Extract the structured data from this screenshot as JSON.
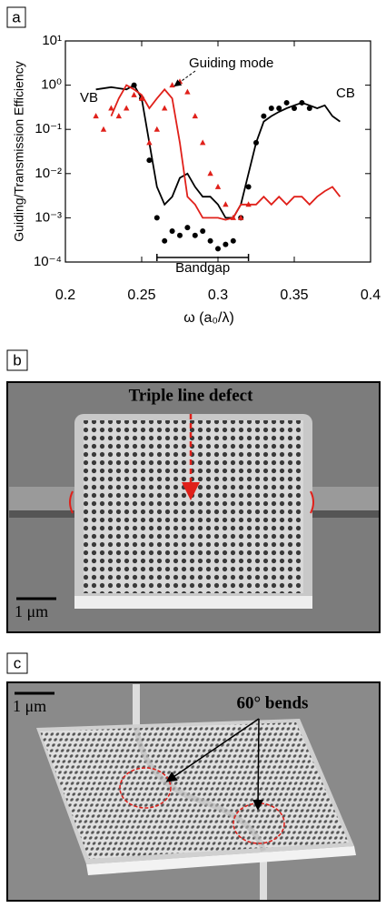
{
  "chart_data": {
    "type": "line",
    "panel_label": "a",
    "ylabel": "Guiding/Transmission Efficiency",
    "xlabel": "ω (a₀/λ)",
    "xlim": [
      0.2,
      0.4
    ],
    "xticks": [
      0.2,
      0.25,
      0.3,
      0.35,
      0.4
    ],
    "ylim": [
      0.0001,
      10
    ],
    "yscale": "log",
    "yticks": [
      {
        "value": 0.0001,
        "label": "10⁻⁴"
      },
      {
        "value": 0.001,
        "label": "10⁻³"
      },
      {
        "value": 0.01,
        "label": "10⁻²"
      },
      {
        "value": 0.1,
        "label": "10⁻¹"
      },
      {
        "value": 1,
        "label": "10⁰"
      },
      {
        "value": 10,
        "label": "10¹"
      }
    ],
    "annotations": {
      "vb": "VB",
      "cb": "CB",
      "guiding": "Guiding mode"
    },
    "bandgap": {
      "label": "Bandgap",
      "range": [
        0.26,
        0.32
      ]
    },
    "series": [
      {
        "color": "#000000",
        "marker": "line",
        "x": [
          0.22,
          0.23,
          0.24,
          0.245,
          0.25,
          0.255,
          0.26,
          0.265,
          0.27,
          0.275,
          0.28,
          0.285,
          0.29,
          0.295,
          0.3,
          0.305,
          0.31,
          0.315,
          0.32,
          0.325,
          0.33,
          0.335,
          0.34,
          0.345,
          0.35,
          0.355,
          0.36,
          0.365,
          0.37,
          0.375,
          0.38
        ],
        "values": [
          0.8,
          0.9,
          0.8,
          1.0,
          0.5,
          0.05,
          0.005,
          0.002,
          0.003,
          0.008,
          0.01,
          0.005,
          0.003,
          0.003,
          0.002,
          0.001,
          0.001,
          0.002,
          0.01,
          0.05,
          0.15,
          0.2,
          0.25,
          0.3,
          0.35,
          0.4,
          0.35,
          0.3,
          0.35,
          0.2,
          0.15
        ]
      },
      {
        "color": "#000000",
        "marker": "circle",
        "x": [
          0.245,
          0.25,
          0.255,
          0.26,
          0.265,
          0.27,
          0.275,
          0.28,
          0.285,
          0.29,
          0.295,
          0.3,
          0.305,
          0.31,
          0.315,
          0.32,
          0.325,
          0.33,
          0.335,
          0.34,
          0.345,
          0.35,
          0.355,
          0.36
        ],
        "values": [
          1.0,
          0.5,
          0.02,
          0.001,
          0.0003,
          0.0005,
          0.0004,
          0.0006,
          0.0004,
          0.0005,
          0.0003,
          0.0002,
          0.00025,
          0.0003,
          0.001,
          0.005,
          0.05,
          0.2,
          0.3,
          0.3,
          0.4,
          0.3,
          0.4,
          0.3
        ]
      },
      {
        "color": "#e0201a",
        "marker": "line",
        "x": [
          0.23,
          0.235,
          0.24,
          0.245,
          0.25,
          0.255,
          0.26,
          0.265,
          0.27,
          0.275,
          0.28,
          0.285,
          0.29,
          0.295,
          0.3,
          0.305,
          0.31,
          0.315,
          0.32,
          0.325,
          0.33,
          0.335,
          0.34,
          0.345,
          0.35,
          0.355,
          0.36,
          0.365,
          0.37,
          0.375,
          0.38
        ],
        "values": [
          0.2,
          0.5,
          1.0,
          0.8,
          0.6,
          0.3,
          0.5,
          0.8,
          0.5,
          0.05,
          0.003,
          0.002,
          0.001,
          0.001,
          0.001,
          0.0009,
          0.001,
          0.002,
          0.002,
          0.002,
          0.003,
          0.002,
          0.003,
          0.002,
          0.003,
          0.003,
          0.002,
          0.003,
          0.004,
          0.005,
          0.003
        ]
      },
      {
        "color": "#e0201a",
        "marker": "triangle",
        "x": [
          0.22,
          0.225,
          0.23,
          0.235,
          0.24,
          0.245,
          0.25,
          0.255,
          0.26,
          0.265,
          0.27,
          0.275,
          0.28,
          0.285,
          0.29,
          0.295,
          0.3,
          0.305,
          0.31,
          0.315,
          0.32
        ],
        "values": [
          0.2,
          0.1,
          0.3,
          0.2,
          0.3,
          0.6,
          0.5,
          0.05,
          0.1,
          0.3,
          1.0,
          1.2,
          0.7,
          0.2,
          0.05,
          0.01,
          0.005,
          0.002,
          0.001,
          0.001,
          0.002
        ]
      }
    ]
  },
  "panel_b": {
    "label": "b",
    "title": "Triple line defect",
    "scale_bar": "1 μm"
  },
  "panel_c": {
    "label": "c",
    "annotation": "60° bends",
    "scale_bar": "1 μm"
  }
}
